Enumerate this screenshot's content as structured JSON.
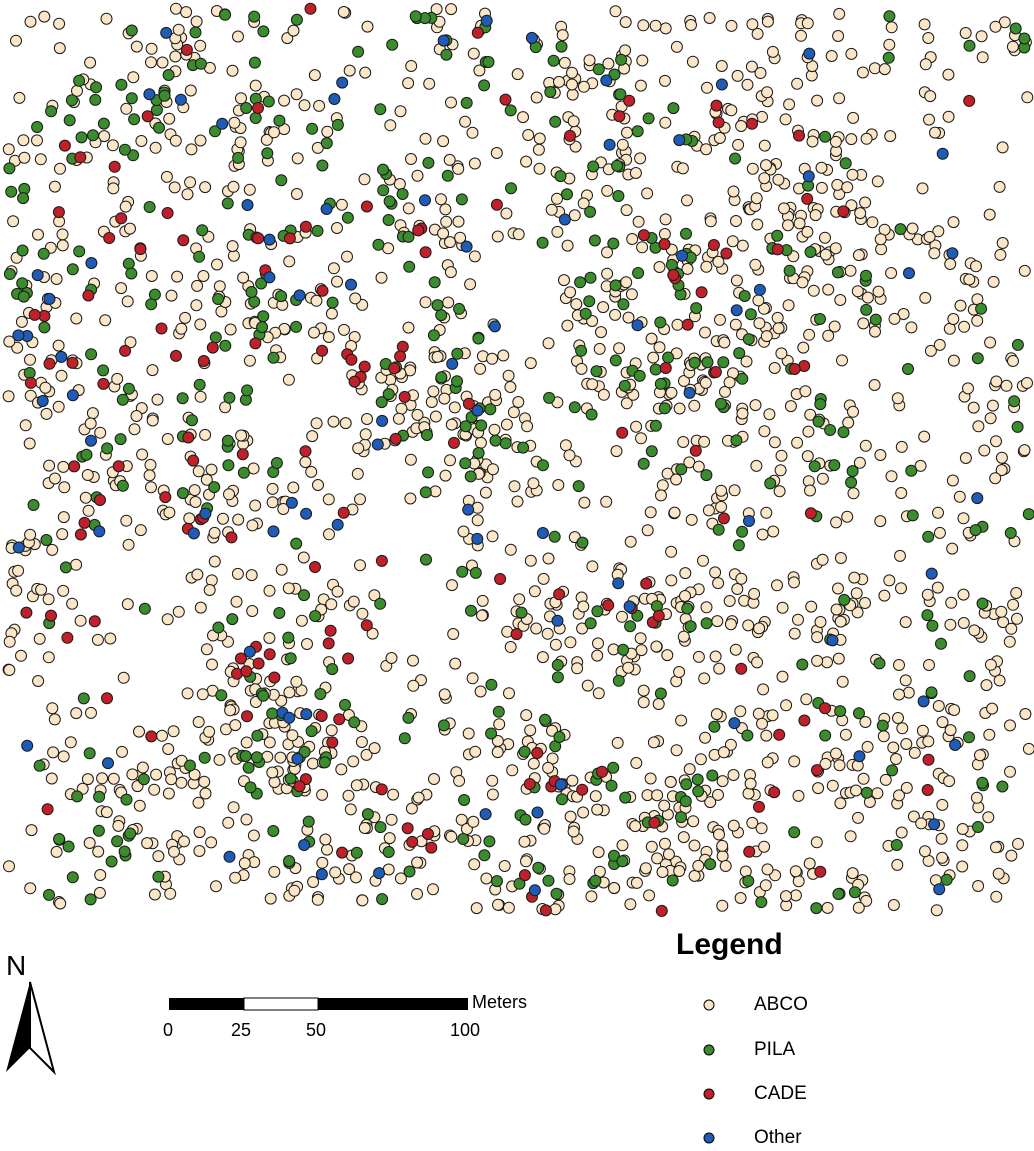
{
  "map": {
    "species": [
      {
        "code": "ABCO",
        "fill": "#fbe7c8"
      },
      {
        "code": "PILA",
        "fill": "#3a8c2c"
      },
      {
        "code": "CADE",
        "fill": "#c0202a"
      },
      {
        "code": "Other",
        "fill": "#1f5cb8"
      }
    ]
  },
  "north": {
    "label": "N"
  },
  "scale": {
    "units": "Meters",
    "ticks": [
      "0",
      "25",
      "50",
      "100"
    ]
  },
  "legend": {
    "title": "Legend",
    "items": [
      {
        "label": "ABCO",
        "fill": "#fbe7c8"
      },
      {
        "label": "PILA",
        "fill": "#3a8c2c"
      },
      {
        "label": "CADE",
        "fill": "#c0202a"
      },
      {
        "label": "Other",
        "fill": "#1f5cb8"
      }
    ]
  }
}
